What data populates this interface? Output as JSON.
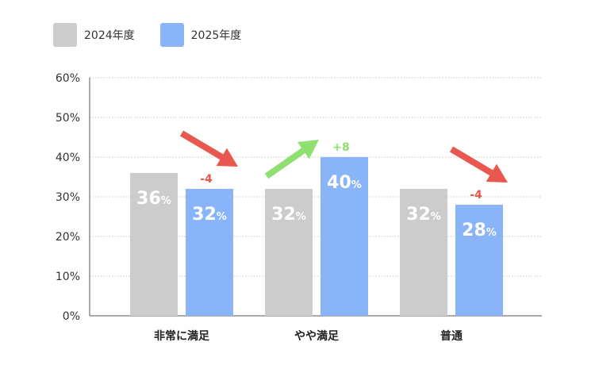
{
  "chart_data": {
    "type": "bar",
    "categories": [
      "非常に満足",
      "やや満足",
      "普通"
    ],
    "series": [
      {
        "name": "2024年度",
        "color": "#cccccc",
        "values": [
          36,
          32,
          32
        ]
      },
      {
        "name": "2025年度",
        "color": "#89b4f8",
        "values": [
          32,
          40,
          28
        ]
      }
    ],
    "value_suffix": "%",
    "ylim": [
      0,
      60
    ],
    "yticks": [
      "0%",
      "10%",
      "20%",
      "30%",
      "40%",
      "50%",
      "60%"
    ],
    "grid": true,
    "legend_position": "top-left",
    "changes": [
      {
        "category": "非常に満足",
        "label": "-4",
        "direction": "down",
        "color": "#e8584f"
      },
      {
        "category": "やや満足",
        "label": "+8",
        "direction": "up",
        "color": "#8fe070"
      },
      {
        "category": "普通",
        "label": "-4",
        "direction": "down",
        "color": "#e8584f"
      }
    ]
  }
}
